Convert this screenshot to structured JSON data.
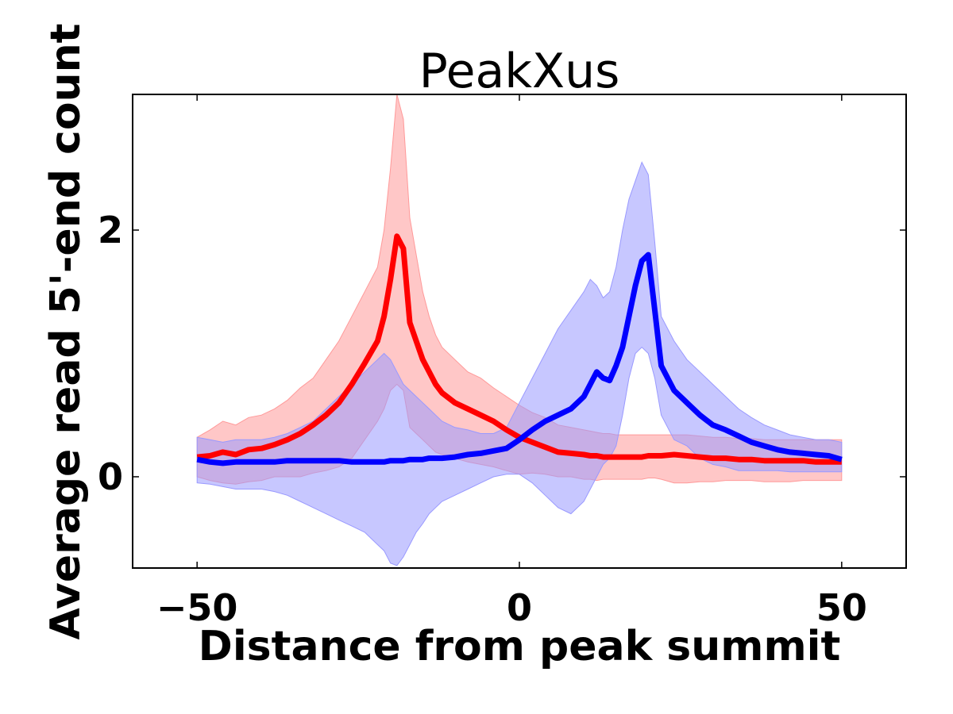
{
  "chart_data": {
    "type": "line",
    "title": "PeakXus",
    "xlabel": "Distance from peak summit",
    "ylabel": "Average read 5'-end count",
    "xlim": [
      -60,
      60
    ],
    "ylim": [
      -0.74,
      3.1
    ],
    "xticks": [
      -50,
      0,
      50
    ],
    "xtick_labels": [
      "−50",
      "0",
      "50"
    ],
    "yticks": [
      0,
      2
    ],
    "ytick_labels": [
      "0",
      "2"
    ],
    "grid": false,
    "legend": "none",
    "x": [
      -50,
      -48,
      -46,
      -44,
      -42,
      -40,
      -38,
      -36,
      -34,
      -32,
      -30,
      -28,
      -26,
      -24,
      -22,
      -21,
      -20,
      -19,
      -18,
      -17,
      -16,
      -15,
      -14,
      -13,
      -12,
      -10,
      -8,
      -6,
      -4,
      -2,
      0,
      2,
      4,
      6,
      8,
      10,
      11,
      12,
      13,
      14,
      15,
      16,
      17,
      18,
      19,
      20,
      21,
      22,
      24,
      26,
      28,
      30,
      32,
      34,
      36,
      38,
      40,
      42,
      44,
      46,
      48,
      50
    ],
    "series": [
      {
        "color": "#ff0000",
        "band_color": "#ff9999",
        "values": [
          0.16,
          0.17,
          0.2,
          0.18,
          0.22,
          0.23,
          0.26,
          0.3,
          0.35,
          0.42,
          0.5,
          0.6,
          0.75,
          0.92,
          1.1,
          1.3,
          1.6,
          1.95,
          1.85,
          1.25,
          1.1,
          0.95,
          0.85,
          0.75,
          0.68,
          0.6,
          0.55,
          0.5,
          0.45,
          0.38,
          0.32,
          0.28,
          0.24,
          0.2,
          0.19,
          0.18,
          0.17,
          0.17,
          0.16,
          0.16,
          0.16,
          0.16,
          0.16,
          0.16,
          0.16,
          0.17,
          0.17,
          0.17,
          0.18,
          0.17,
          0.16,
          0.15,
          0.15,
          0.14,
          0.14,
          0.13,
          0.13,
          0.13,
          0.13,
          0.12,
          0.12,
          0.12
        ],
        "upper": [
          0.32,
          0.38,
          0.45,
          0.42,
          0.48,
          0.5,
          0.55,
          0.62,
          0.72,
          0.8,
          0.95,
          1.1,
          1.3,
          1.5,
          1.7,
          2.0,
          2.5,
          3.1,
          2.9,
          2.1,
          1.8,
          1.5,
          1.3,
          1.15,
          1.05,
          0.95,
          0.85,
          0.8,
          0.72,
          0.65,
          0.58,
          0.52,
          0.48,
          0.42,
          0.4,
          0.38,
          0.37,
          0.36,
          0.35,
          0.35,
          0.34,
          0.34,
          0.34,
          0.34,
          0.34,
          0.34,
          0.34,
          0.34,
          0.34,
          0.34,
          0.33,
          0.32,
          0.32,
          0.31,
          0.31,
          0.3,
          0.3,
          0.3,
          0.3,
          0.3,
          0.3,
          0.3
        ],
        "lower": [
          0.0,
          -0.03,
          -0.05,
          -0.06,
          -0.04,
          -0.03,
          0.0,
          0.0,
          0.0,
          0.03,
          0.05,
          0.08,
          0.15,
          0.3,
          0.45,
          0.55,
          0.7,
          0.75,
          0.7,
          0.4,
          0.35,
          0.3,
          0.25,
          0.2,
          0.18,
          0.15,
          0.12,
          0.1,
          0.08,
          0.05,
          0.02,
          0.03,
          0.02,
          0.0,
          0.0,
          -0.02,
          -0.02,
          -0.03,
          -0.02,
          -0.02,
          -0.02,
          -0.02,
          -0.02,
          -0.02,
          -0.02,
          -0.01,
          -0.01,
          -0.02,
          -0.05,
          -0.05,
          -0.04,
          -0.04,
          -0.03,
          -0.03,
          -0.03,
          -0.04,
          -0.04,
          -0.04,
          -0.03,
          -0.03,
          -0.03,
          -0.03
        ]
      },
      {
        "color": "#0000ff",
        "band_color": "#9999ff",
        "values": [
          0.14,
          0.12,
          0.11,
          0.12,
          0.12,
          0.12,
          0.12,
          0.13,
          0.13,
          0.13,
          0.13,
          0.13,
          0.12,
          0.12,
          0.12,
          0.12,
          0.13,
          0.13,
          0.13,
          0.14,
          0.14,
          0.14,
          0.15,
          0.15,
          0.15,
          0.16,
          0.18,
          0.19,
          0.21,
          0.23,
          0.3,
          0.38,
          0.45,
          0.5,
          0.55,
          0.65,
          0.75,
          0.85,
          0.8,
          0.78,
          0.9,
          1.05,
          1.3,
          1.55,
          1.75,
          1.8,
          1.35,
          0.9,
          0.7,
          0.6,
          0.5,
          0.42,
          0.38,
          0.33,
          0.28,
          0.25,
          0.22,
          0.2,
          0.19,
          0.18,
          0.17,
          0.14
        ],
        "upper": [
          0.32,
          0.3,
          0.28,
          0.3,
          0.3,
          0.3,
          0.32,
          0.35,
          0.4,
          0.45,
          0.55,
          0.65,
          0.75,
          0.85,
          0.95,
          1.0,
          0.95,
          0.85,
          0.75,
          0.7,
          0.65,
          0.6,
          0.55,
          0.5,
          0.45,
          0.4,
          0.38,
          0.35,
          0.35,
          0.4,
          0.6,
          0.8,
          1.0,
          1.2,
          1.35,
          1.5,
          1.6,
          1.55,
          1.45,
          1.5,
          1.7,
          2.0,
          2.25,
          2.4,
          2.55,
          2.45,
          1.9,
          1.3,
          1.1,
          0.95,
          0.85,
          0.75,
          0.65,
          0.55,
          0.48,
          0.42,
          0.38,
          0.34,
          0.32,
          0.3,
          0.3,
          0.28
        ],
        "lower": [
          -0.05,
          -0.06,
          -0.08,
          -0.1,
          -0.1,
          -0.1,
          -0.12,
          -0.15,
          -0.2,
          -0.25,
          -0.3,
          -0.35,
          -0.4,
          -0.45,
          -0.55,
          -0.6,
          -0.7,
          -0.72,
          -0.65,
          -0.55,
          -0.45,
          -0.38,
          -0.3,
          -0.25,
          -0.2,
          -0.15,
          -0.1,
          -0.05,
          0.0,
          0.02,
          0.02,
          -0.05,
          -0.15,
          -0.25,
          -0.3,
          -0.2,
          -0.1,
          0.0,
          0.1,
          0.15,
          0.25,
          0.5,
          0.8,
          1.0,
          1.05,
          1.0,
          0.8,
          0.5,
          0.3,
          0.25,
          0.15,
          0.1,
          0.08,
          0.05,
          0.05,
          0.05,
          0.05,
          0.04,
          0.04,
          0.04,
          0.04,
          0.04
        ]
      }
    ]
  }
}
